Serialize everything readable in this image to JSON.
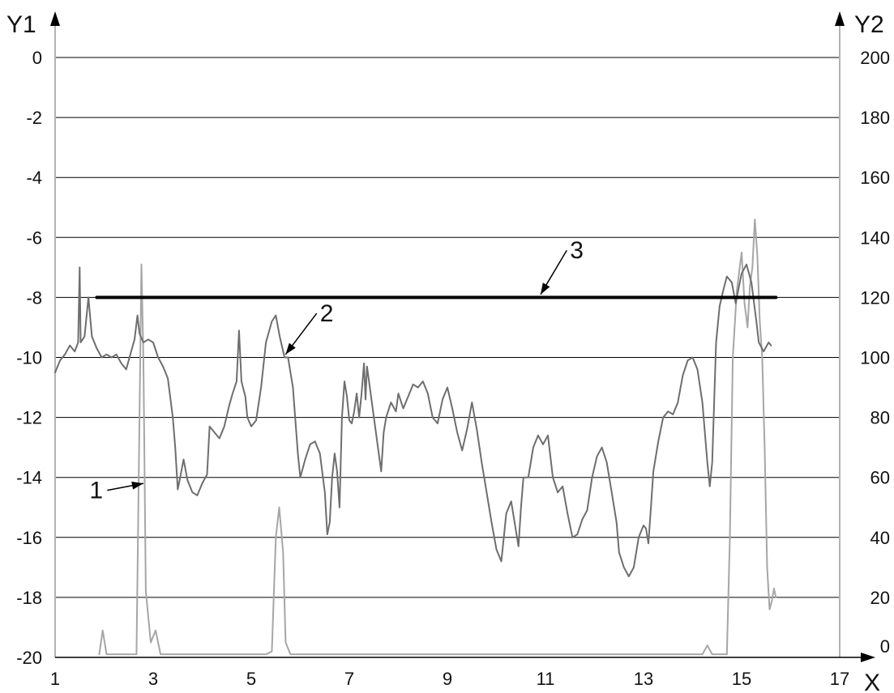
{
  "chart_data": {
    "type": "line",
    "x_axis": {
      "label": "X",
      "min": 1,
      "max": 17,
      "ticks": [
        1,
        3,
        5,
        7,
        9,
        11,
        13,
        15,
        17
      ]
    },
    "y1_axis": {
      "label": "Y1",
      "min": -20,
      "max": 0,
      "ticks": [
        0,
        -2,
        -4,
        -6,
        -8,
        -10,
        -12,
        -14,
        -16,
        -18,
        -20
      ],
      "grid": true
    },
    "y2_axis": {
      "label": "Y2",
      "ticks": [
        200,
        180,
        160,
        140,
        120,
        100,
        80,
        60,
        40,
        20,
        0
      ]
    },
    "colors": {
      "series_1": "#a6a6a6",
      "series_2": "#6e6e6e",
      "series_3": "#000000",
      "grid": "#000000"
    },
    "series": [
      {
        "id": "1",
        "axis": "y1",
        "points": [
          [
            1.9,
            -19.9
          ],
          [
            1.97,
            -19.1
          ],
          [
            2.05,
            -19.9
          ],
          [
            2.3,
            -19.9
          ],
          [
            2.55,
            -19.9
          ],
          [
            2.66,
            -19.9
          ],
          [
            2.72,
            -12.0
          ],
          [
            2.76,
            -6.9
          ],
          [
            2.8,
            -10.0
          ],
          [
            2.85,
            -17.8
          ],
          [
            2.95,
            -19.5
          ],
          [
            3.05,
            -19.1
          ],
          [
            3.15,
            -19.9
          ],
          [
            3.5,
            -19.9
          ],
          [
            5.3,
            -19.9
          ],
          [
            5.42,
            -19.8
          ],
          [
            5.5,
            -16.0
          ],
          [
            5.57,
            -15.0
          ],
          [
            5.65,
            -16.5
          ],
          [
            5.7,
            -19.5
          ],
          [
            5.8,
            -19.9
          ],
          [
            6.2,
            -19.9
          ],
          [
            7.0,
            -19.9
          ],
          [
            7.9,
            -19.9
          ],
          [
            8.6,
            -19.9
          ],
          [
            9.4,
            -19.9
          ],
          [
            10.5,
            -19.9
          ],
          [
            12.0,
            -19.9
          ],
          [
            13.5,
            -19.9
          ],
          [
            14.2,
            -19.9
          ],
          [
            14.3,
            -19.6
          ],
          [
            14.4,
            -19.9
          ],
          [
            14.7,
            -19.9
          ],
          [
            14.76,
            -16.0
          ],
          [
            14.82,
            -10.0
          ],
          [
            14.9,
            -7.8
          ],
          [
            15.0,
            -6.5
          ],
          [
            15.06,
            -8.2
          ],
          [
            15.12,
            -9.0
          ],
          [
            15.17,
            -7.6
          ],
          [
            15.22,
            -7.0
          ],
          [
            15.27,
            -5.4
          ],
          [
            15.32,
            -6.6
          ],
          [
            15.37,
            -8.8
          ],
          [
            15.42,
            -10.0
          ],
          [
            15.47,
            -13.0
          ],
          [
            15.52,
            -17.0
          ],
          [
            15.57,
            -18.4
          ],
          [
            15.62,
            -18.1
          ],
          [
            15.66,
            -17.7
          ],
          [
            15.7,
            -18.0
          ]
        ]
      },
      {
        "id": "2",
        "axis": "y1",
        "points": [
          [
            1.0,
            -10.5
          ],
          [
            1.1,
            -10.1
          ],
          [
            1.2,
            -9.9
          ],
          [
            1.3,
            -9.6
          ],
          [
            1.4,
            -9.8
          ],
          [
            1.47,
            -9.5
          ],
          [
            1.5,
            -7.0
          ],
          [
            1.52,
            -9.5
          ],
          [
            1.6,
            -9.3
          ],
          [
            1.68,
            -8.0
          ],
          [
            1.75,
            -9.3
          ],
          [
            1.85,
            -9.7
          ],
          [
            1.95,
            -10.0
          ],
          [
            2.05,
            -9.9
          ],
          [
            2.15,
            -10.0
          ],
          [
            2.25,
            -9.9
          ],
          [
            2.35,
            -10.2
          ],
          [
            2.45,
            -10.4
          ],
          [
            2.55,
            -9.8
          ],
          [
            2.62,
            -9.4
          ],
          [
            2.68,
            -8.6
          ],
          [
            2.72,
            -9.2
          ],
          [
            2.8,
            -9.5
          ],
          [
            2.9,
            -9.4
          ],
          [
            3.0,
            -9.5
          ],
          [
            3.1,
            -10.0
          ],
          [
            3.2,
            -10.3
          ],
          [
            3.3,
            -10.7
          ],
          [
            3.4,
            -12.0
          ],
          [
            3.45,
            -13.0
          ],
          [
            3.5,
            -14.4
          ],
          [
            3.55,
            -14.0
          ],
          [
            3.62,
            -13.4
          ],
          [
            3.7,
            -14.1
          ],
          [
            3.8,
            -14.5
          ],
          [
            3.9,
            -14.6
          ],
          [
            4.0,
            -14.2
          ],
          [
            4.1,
            -13.9
          ],
          [
            4.15,
            -12.3
          ],
          [
            4.25,
            -12.5
          ],
          [
            4.35,
            -12.7
          ],
          [
            4.45,
            -12.3
          ],
          [
            4.55,
            -11.6
          ],
          [
            4.62,
            -11.2
          ],
          [
            4.7,
            -10.8
          ],
          [
            4.75,
            -9.1
          ],
          [
            4.8,
            -10.8
          ],
          [
            4.88,
            -11.3
          ],
          [
            4.92,
            -12.0
          ],
          [
            5.0,
            -12.3
          ],
          [
            5.1,
            -12.1
          ],
          [
            5.2,
            -11.0
          ],
          [
            5.3,
            -9.5
          ],
          [
            5.42,
            -8.8
          ],
          [
            5.5,
            -8.6
          ],
          [
            5.58,
            -9.3
          ],
          [
            5.68,
            -10.0
          ],
          [
            5.75,
            -10.0
          ],
          [
            5.85,
            -11.0
          ],
          [
            5.95,
            -13.2
          ],
          [
            6.0,
            -14.0
          ],
          [
            6.1,
            -13.4
          ],
          [
            6.2,
            -12.9
          ],
          [
            6.3,
            -12.8
          ],
          [
            6.4,
            -13.2
          ],
          [
            6.5,
            -14.5
          ],
          [
            6.55,
            -15.9
          ],
          [
            6.6,
            -15.5
          ],
          [
            6.65,
            -14.0
          ],
          [
            6.7,
            -13.2
          ],
          [
            6.75,
            -13.8
          ],
          [
            6.8,
            -15.0
          ],
          [
            6.85,
            -12.0
          ],
          [
            6.9,
            -10.8
          ],
          [
            6.95,
            -11.3
          ],
          [
            7.0,
            -12.1
          ],
          [
            7.05,
            -12.2
          ],
          [
            7.1,
            -11.8
          ],
          [
            7.15,
            -11.2
          ],
          [
            7.2,
            -12.0
          ],
          [
            7.25,
            -11.2
          ],
          [
            7.3,
            -10.2
          ],
          [
            7.33,
            -11.4
          ],
          [
            7.36,
            -10.3
          ],
          [
            7.6,
            -13.2
          ],
          [
            7.65,
            -13.8
          ],
          [
            7.7,
            -12.5
          ],
          [
            7.75,
            -12.0
          ],
          [
            7.85,
            -11.5
          ],
          [
            7.95,
            -11.8
          ],
          [
            8.0,
            -11.2
          ],
          [
            8.1,
            -11.7
          ],
          [
            8.2,
            -11.3
          ],
          [
            8.3,
            -10.9
          ],
          [
            8.4,
            -11.0
          ],
          [
            8.5,
            -10.8
          ],
          [
            8.6,
            -11.2
          ],
          [
            8.7,
            -12.0
          ],
          [
            8.8,
            -12.2
          ],
          [
            8.9,
            -11.4
          ],
          [
            9.0,
            -11.0
          ],
          [
            9.1,
            -11.7
          ],
          [
            9.2,
            -12.5
          ],
          [
            9.3,
            -13.1
          ],
          [
            9.4,
            -12.4
          ],
          [
            9.5,
            -11.5
          ],
          [
            9.6,
            -12.4
          ],
          [
            9.7,
            -13.5
          ],
          [
            9.8,
            -14.5
          ],
          [
            9.9,
            -15.5
          ],
          [
            10.0,
            -16.4
          ],
          [
            10.1,
            -16.8
          ],
          [
            10.15,
            -16.0
          ],
          [
            10.2,
            -15.2
          ],
          [
            10.3,
            -14.8
          ],
          [
            10.4,
            -15.8
          ],
          [
            10.45,
            -16.3
          ],
          [
            10.5,
            -15.0
          ],
          [
            10.55,
            -14.0
          ],
          [
            10.65,
            -14.0
          ],
          [
            10.75,
            -13.0
          ],
          [
            10.85,
            -12.6
          ],
          [
            10.95,
            -12.9
          ],
          [
            11.05,
            -12.6
          ],
          [
            11.15,
            -14.0
          ],
          [
            11.25,
            -14.5
          ],
          [
            11.35,
            -14.3
          ],
          [
            11.45,
            -15.2
          ],
          [
            11.55,
            -16.0
          ],
          [
            11.65,
            -15.9
          ],
          [
            11.75,
            -15.4
          ],
          [
            11.85,
            -15.1
          ],
          [
            11.95,
            -14.0
          ],
          [
            12.05,
            -13.3
          ],
          [
            12.15,
            -13.0
          ],
          [
            12.25,
            -13.5
          ],
          [
            12.35,
            -14.5
          ],
          [
            12.45,
            -15.5
          ],
          [
            12.5,
            -16.5
          ],
          [
            12.6,
            -17.0
          ],
          [
            12.7,
            -17.3
          ],
          [
            12.8,
            -17.0
          ],
          [
            12.9,
            -16.0
          ],
          [
            13.0,
            -15.6
          ],
          [
            13.05,
            -15.7
          ],
          [
            13.1,
            -16.2
          ],
          [
            13.15,
            -15.0
          ],
          [
            13.2,
            -13.8
          ],
          [
            13.3,
            -12.8
          ],
          [
            13.4,
            -12.0
          ],
          [
            13.5,
            -11.8
          ],
          [
            13.6,
            -11.9
          ],
          [
            13.7,
            -11.5
          ],
          [
            13.8,
            -10.6
          ],
          [
            13.9,
            -10.1
          ],
          [
            14.0,
            -10.0
          ],
          [
            14.1,
            -10.4
          ],
          [
            14.2,
            -11.5
          ],
          [
            14.3,
            -13.5
          ],
          [
            14.35,
            -14.3
          ],
          [
            14.4,
            -13.5
          ],
          [
            14.48,
            -9.5
          ],
          [
            14.55,
            -8.3
          ],
          [
            14.62,
            -7.8
          ],
          [
            14.7,
            -7.3
          ],
          [
            14.8,
            -7.5
          ],
          [
            14.88,
            -8.2
          ],
          [
            14.95,
            -7.6
          ],
          [
            15.0,
            -7.2
          ],
          [
            15.1,
            -6.9
          ],
          [
            15.2,
            -7.5
          ],
          [
            15.3,
            -8.8
          ],
          [
            15.35,
            -9.5
          ],
          [
            15.45,
            -9.8
          ],
          [
            15.55,
            -9.5
          ],
          [
            15.6,
            -9.6
          ]
        ]
      },
      {
        "id": "3",
        "axis": "y1",
        "points": [
          [
            1.85,
            -8.0
          ],
          [
            15.7,
            -8.0
          ]
        ]
      }
    ],
    "annotations": [
      {
        "label": "1",
        "series": "1",
        "text_at": [
          1.7,
          -14.7
        ],
        "arrow_to": [
          2.8,
          -14.2
        ]
      },
      {
        "label": "2",
        "series": "2",
        "text_at": [
          6.4,
          -8.8
        ],
        "arrow_to": [
          5.7,
          -9.9
        ]
      },
      {
        "label": "3",
        "series": "3",
        "text_at": [
          11.5,
          -6.7
        ],
        "arrow_to": [
          10.9,
          -7.9
        ]
      }
    ]
  }
}
